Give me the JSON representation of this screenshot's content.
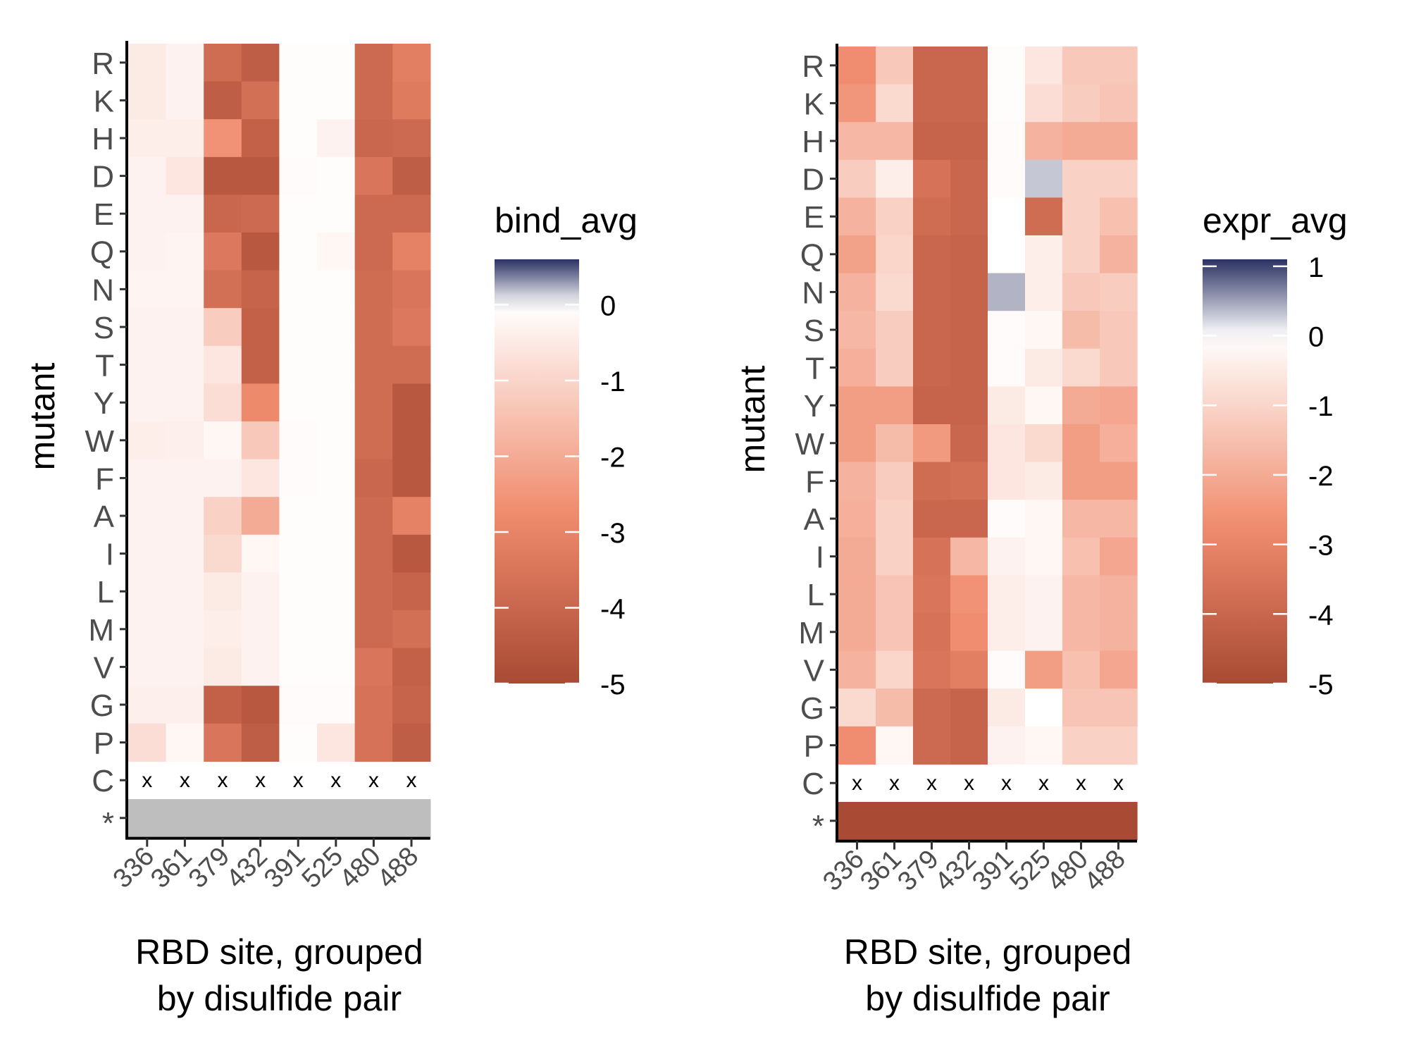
{
  "colors": {
    "low": "#a84a34",
    "mid_low": "#f08b6d",
    "zero": "#ffffff",
    "high": "#2b3163",
    "na_fill": "#bebebe"
  },
  "chart_data": [
    {
      "type": "heatmap",
      "xlabel": "RBD site, grouped\nby disulfide pair",
      "ylabel": "mutant",
      "x_categories": [
        "336",
        "361",
        "379",
        "432",
        "391",
        "525",
        "480",
        "488"
      ],
      "y_categories": [
        "R",
        "K",
        "H",
        "D",
        "E",
        "Q",
        "N",
        "S",
        "T",
        "Y",
        "W",
        "F",
        "A",
        "I",
        "L",
        "M",
        "V",
        "G",
        "P",
        "C",
        "*"
      ],
      "legend": {
        "title": "bind_avg",
        "range": [
          -5,
          0.6
        ],
        "ticks": [
          0,
          -1,
          -2,
          -3,
          -4,
          -5
        ],
        "tick_labels": [
          "0",
          "-1",
          "-2",
          "-3",
          "-4",
          "-5"
        ],
        "placement": "right"
      },
      "na_marker": "x",
      "values": [
        [
          -0.5,
          -0.3,
          -3.8,
          -4.3,
          -0.05,
          -0.05,
          -3.9,
          -3.2
        ],
        [
          -0.5,
          -0.3,
          -4.3,
          -3.7,
          -0.05,
          -0.05,
          -3.9,
          -3.3
        ],
        [
          -0.4,
          -0.4,
          -2.6,
          -4.2,
          -0.05,
          -0.3,
          -4.0,
          -3.9
        ],
        [
          -0.3,
          -0.6,
          -4.5,
          -4.5,
          -0.1,
          -0.05,
          -3.5,
          -4.3
        ],
        [
          -0.3,
          -0.3,
          -4.0,
          -3.9,
          -0.05,
          -0.05,
          -3.9,
          -3.9
        ],
        [
          -0.3,
          -0.25,
          -3.4,
          -4.5,
          -0.05,
          -0.2,
          -3.9,
          -3.1
        ],
        [
          -0.25,
          -0.25,
          -3.7,
          -4.1,
          -0.05,
          -0.05,
          -3.8,
          -3.5
        ],
        [
          -0.3,
          -0.3,
          -1.2,
          -4.2,
          -0.05,
          -0.05,
          -3.8,
          -3.4
        ],
        [
          -0.3,
          -0.3,
          -0.6,
          -4.2,
          -0.05,
          -0.05,
          -3.8,
          -3.8
        ],
        [
          -0.3,
          -0.3,
          -0.8,
          -2.8,
          -0.05,
          -0.05,
          -3.8,
          -4.5
        ],
        [
          -0.4,
          -0.35,
          -0.2,
          -1.3,
          -0.1,
          -0.05,
          -3.8,
          -4.5
        ],
        [
          -0.3,
          -0.3,
          -0.3,
          -0.6,
          -0.1,
          -0.05,
          -4.0,
          -4.5
        ],
        [
          -0.3,
          -0.3,
          -1.1,
          -2.0,
          -0.05,
          -0.05,
          -3.9,
          -3.1
        ],
        [
          -0.3,
          -0.3,
          -0.9,
          -0.2,
          -0.05,
          -0.05,
          -3.9,
          -4.5
        ],
        [
          -0.3,
          -0.3,
          -0.5,
          -0.3,
          -0.05,
          -0.05,
          -3.9,
          -4.1
        ],
        [
          -0.3,
          -0.3,
          -0.4,
          -0.3,
          -0.05,
          -0.05,
          -3.9,
          -3.7
        ],
        [
          -0.3,
          -0.3,
          -0.5,
          -0.3,
          -0.05,
          -0.05,
          -3.5,
          -4.2
        ],
        [
          -0.35,
          -0.35,
          -4.2,
          -4.5,
          -0.1,
          -0.1,
          -3.6,
          -4.1
        ],
        [
          -0.8,
          -0.2,
          -3.5,
          -4.3,
          -0.05,
          -0.6,
          -3.6,
          -4.3
        ],
        [
          null,
          null,
          null,
          null,
          null,
          null,
          null,
          null
        ],
        [
          null,
          null,
          null,
          null,
          null,
          null,
          null,
          null
        ]
      ],
      "na_row_styles": [
        "x",
        "gray"
      ]
    },
    {
      "type": "heatmap",
      "xlabel": "RBD site, grouped\nby disulfide pair",
      "ylabel": "mutant",
      "x_categories": [
        "336",
        "361",
        "379",
        "432",
        "391",
        "525",
        "480",
        "488"
      ],
      "y_categories": [
        "R",
        "K",
        "H",
        "D",
        "E",
        "Q",
        "N",
        "S",
        "T",
        "Y",
        "W",
        "F",
        "A",
        "I",
        "L",
        "M",
        "V",
        "G",
        "P",
        "C",
        "*"
      ],
      "legend": {
        "title": "expr_avg",
        "range": [
          -5,
          1.1
        ],
        "ticks": [
          1,
          0,
          -1,
          -2,
          -3,
          -4,
          -5
        ],
        "tick_labels": [
          "1",
          "0",
          "-1",
          "-2",
          "-3",
          "-4",
          "-5"
        ],
        "placement": "right"
      },
      "na_marker": "x",
      "values": [
        [
          -2.7,
          -1.3,
          -4.0,
          -4.0,
          -0.05,
          -0.6,
          -1.3,
          -1.3
        ],
        [
          -2.5,
          -0.9,
          -4.0,
          -4.0,
          -0.05,
          -0.8,
          -1.2,
          -1.4
        ],
        [
          -1.7,
          -1.7,
          -4.1,
          -4.1,
          -0.1,
          -1.8,
          -2.0,
          -2.0
        ],
        [
          -1.2,
          -0.4,
          -3.6,
          -4.0,
          -0.1,
          0.3,
          -1.1,
          -1.1
        ],
        [
          -1.8,
          -1.1,
          -3.8,
          -4.0,
          0.0,
          -3.8,
          -1.1,
          -1.5
        ],
        [
          -2.2,
          -1.0,
          -4.0,
          -4.1,
          0.0,
          -0.4,
          -1.1,
          -1.8
        ],
        [
          -1.8,
          -0.9,
          -4.0,
          -4.1,
          0.4,
          -0.4,
          -1.3,
          -1.2
        ],
        [
          -1.7,
          -1.2,
          -4.0,
          -4.1,
          -0.1,
          -0.2,
          -1.6,
          -1.3
        ],
        [
          -1.9,
          -1.2,
          -4.0,
          -4.1,
          -0.1,
          -0.5,
          -0.9,
          -1.3
        ],
        [
          -2.3,
          -2.3,
          -4.1,
          -4.1,
          -0.5,
          -0.2,
          -2.0,
          -2.1
        ],
        [
          -2.3,
          -1.6,
          -2.4,
          -4.0,
          -0.6,
          -0.9,
          -2.3,
          -1.9
        ],
        [
          -1.8,
          -1.2,
          -3.8,
          -3.7,
          -0.6,
          -0.5,
          -2.3,
          -2.3
        ],
        [
          -1.9,
          -1.1,
          -4.0,
          -4.0,
          -0.1,
          -0.2,
          -1.7,
          -1.7
        ],
        [
          -2.0,
          -1.1,
          -3.6,
          -1.7,
          -0.3,
          -0.2,
          -1.5,
          -2.1
        ],
        [
          -2.0,
          -1.4,
          -3.5,
          -2.6,
          -0.4,
          -0.3,
          -1.7,
          -1.8
        ],
        [
          -2.0,
          -1.4,
          -3.6,
          -2.7,
          -0.4,
          -0.3,
          -1.7,
          -1.8
        ],
        [
          -1.8,
          -1.0,
          -3.5,
          -3.2,
          -0.1,
          -2.3,
          -1.5,
          -2.1
        ],
        [
          -0.9,
          -1.6,
          -3.9,
          -4.1,
          -0.5,
          0.0,
          -1.4,
          -1.4
        ],
        [
          -2.7,
          -0.2,
          -3.9,
          -4.1,
          -0.3,
          -0.2,
          -1.1,
          -1.1
        ],
        [
          null,
          null,
          null,
          null,
          null,
          null,
          null,
          null
        ],
        [
          -5,
          -5,
          -5,
          -5,
          -5,
          -5,
          -5,
          -5
        ]
      ],
      "na_row_styles": [
        "x",
        "value"
      ]
    }
  ]
}
